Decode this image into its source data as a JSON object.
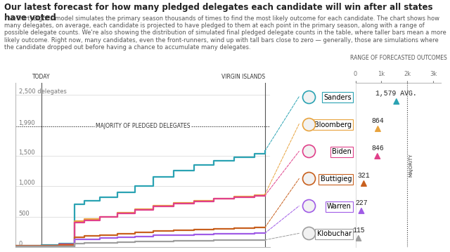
{
  "chart_data": [
    {
      "type": "line",
      "title": "Our latest forecast for how many pledged delegates each candidate will win after all states have voted",
      "subtitle": "FiveThirtyEight's model simulates the primary season thousands of times to find the most likely outcome for each candidate. The chart shows how many delegates, on average, each candidate is projected to have pledged to them at each point in the primary season, along with a range of possible delegate counts. We're also showing the distribution of simulated final pledged delegate counts in the table, where taller bars mean a more likely outcome. Right now, many candidates, even the front-runners, wind up with tall bars close to zero — generally, those are simulations where the candidate dropped out before having a chance to accumulate many delegates.",
      "x": [
        0,
        10,
        17,
        23,
        27,
        33,
        40,
        47,
        54,
        62,
        70,
        78,
        86,
        94,
        98
      ],
      "xlim": [
        0,
        100
      ],
      "ylim": [
        0,
        2700
      ],
      "yticks": [
        0,
        500,
        {
          "value": 1000,
          "label": "1,000"
        },
        {
          "value": 1500,
          "label": "1,500"
        },
        {
          "value": 1990,
          "label": "1,990"
        },
        {
          "value": 2500,
          "label": "2,500 delegates"
        }
      ],
      "grid": true,
      "tick_labels": "y",
      "line_style": "steps",
      "series": [
        {
          "name": "Sanders",
          "color": "#2ba3b3",
          "values": [
            20,
            30,
            60,
            700,
            760,
            820,
            900,
            1000,
            1150,
            1260,
            1350,
            1420,
            1480,
            1540,
            1579
          ]
        },
        {
          "name": "Bloomberg",
          "color": "#e8a33d",
          "values": [
            0,
            0,
            0,
            420,
            460,
            500,
            560,
            620,
            680,
            720,
            760,
            800,
            830,
            850,
            864
          ]
        },
        {
          "name": "Biden",
          "color": "#e0408a",
          "values": [
            15,
            20,
            40,
            400,
            440,
            490,
            550,
            610,
            670,
            710,
            750,
            790,
            820,
            840,
            846
          ]
        },
        {
          "name": "Buttigieg",
          "color": "#c8601e",
          "values": [
            20,
            25,
            30,
            160,
            180,
            200,
            220,
            240,
            260,
            275,
            290,
            300,
            310,
            318,
            321
          ]
        },
        {
          "name": "Warren",
          "color": "#a05ce6",
          "values": [
            5,
            8,
            12,
            120,
            130,
            145,
            160,
            175,
            190,
            200,
            210,
            215,
            220,
            225,
            227
          ]
        },
        {
          "name": "Klobuchar",
          "color": "#9e9e9e",
          "values": [
            5,
            7,
            8,
            60,
            65,
            70,
            78,
            85,
            92,
            98,
            103,
            108,
            112,
            114,
            115
          ]
        }
      ],
      "annotations": [
        {
          "text": "TODAY",
          "x": 10
        },
        {
          "text": "VIRGIN ISLANDS",
          "x": 98
        },
        {
          "text": "MAJORITY OF PLEDGED DELEGATES",
          "y": 1990
        }
      ]
    },
    {
      "type": "scatter",
      "title": "RANGE OF FORECASTED OUTCOMES",
      "categories": [
        "Sanders",
        "Bloomberg",
        "Biden",
        "Buttigieg",
        "Warren",
        "Klobuchar"
      ],
      "values": [
        1579,
        864,
        846,
        321,
        227,
        115
      ],
      "value_labels": [
        "1,579 AVG.",
        "864",
        "846",
        "321",
        "227",
        "115"
      ],
      "colors": [
        "#2ba3b3",
        "#e8a33d",
        "#e0408a",
        "#c8601e",
        "#a05ce6",
        "#9e9e9e"
      ],
      "marker": "triangle",
      "data_labels": true,
      "xlim": [
        0,
        3300
      ],
      "xticks": [
        0,
        {
          "value": 1000,
          "label": "1k"
        },
        {
          "value": 2000,
          "label": "2k"
        },
        {
          "value": 3000,
          "label": "3k"
        }
      ],
      "annotations": [
        {
          "text": "MAJORITY",
          "x": 1990
        }
      ]
    }
  ]
}
